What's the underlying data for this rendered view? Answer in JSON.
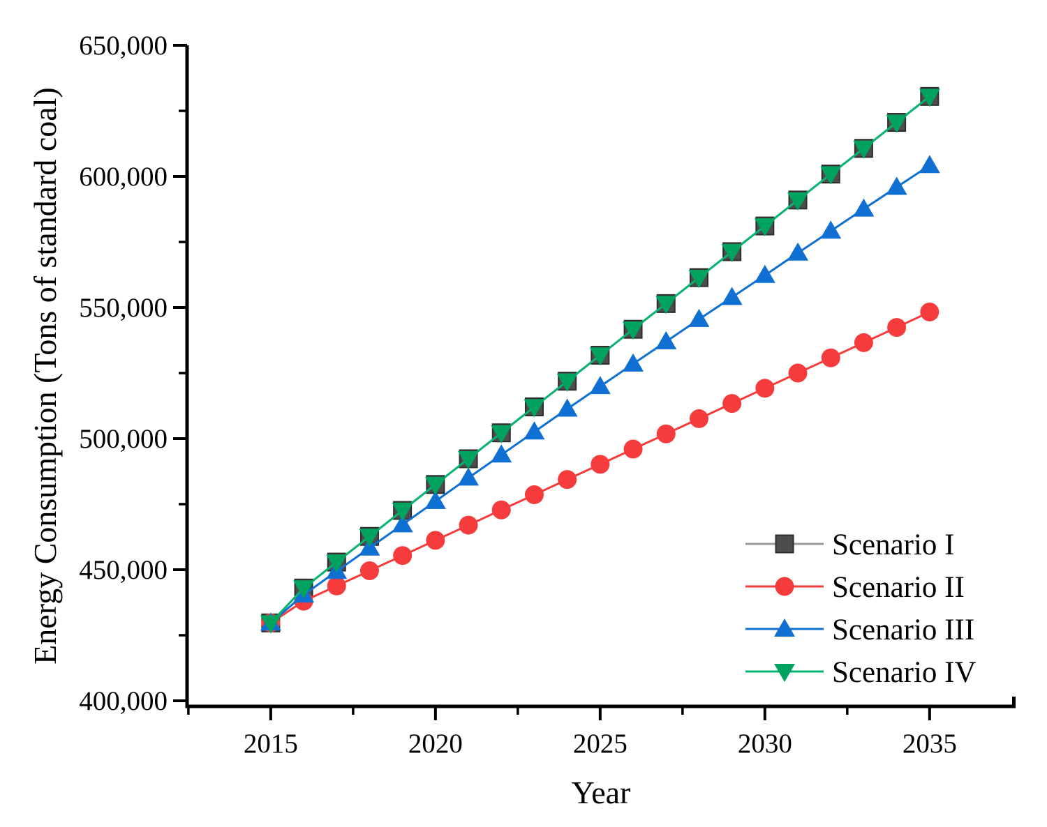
{
  "chart_data": {
    "type": "line",
    "title": "",
    "xlabel": "Year",
    "ylabel": "Energy Consumption (Tons of standard coal)",
    "x": [
      2015,
      2016,
      2017,
      2018,
      2019,
      2020,
      2021,
      2022,
      2023,
      2024,
      2025,
      2026,
      2027,
      2028,
      2029,
      2030,
      2031,
      2032,
      2033,
      2034,
      2035
    ],
    "series": [
      {
        "name": "Scenario I",
        "marker": "square",
        "marker_color": "#4d4d4d",
        "marker_stroke": "#2e2e2e",
        "line_color": "#9a9a9a",
        "values": [
          429700,
          443000,
          452900,
          462700,
          472600,
          482500,
          492300,
          502200,
          512100,
          521900,
          531800,
          541700,
          551500,
          561400,
          571300,
          581100,
          591000,
          600900,
          610700,
          620600,
          630500
        ]
      },
      {
        "name": "Scenario II",
        "marker": "circle",
        "marker_color": "#f53b3b",
        "marker_stroke": "#f53b3b",
        "line_color": "#f53b3b",
        "values": [
          429700,
          438000,
          443800,
          449600,
          455400,
          461200,
          467000,
          472800,
          478600,
          484400,
          490200,
          496000,
          501800,
          507600,
          513400,
          519200,
          525000,
          530800,
          536600,
          542400,
          548300
        ]
      },
      {
        "name": "Scenario III",
        "marker": "triangle-up",
        "marker_color": "#0f6fd2",
        "marker_stroke": "#0f6fd2",
        "line_color": "#0f6fd2",
        "values": [
          429700,
          440400,
          449400,
          458300,
          467200,
          476100,
          485000,
          493800,
          502600,
          511300,
          519900,
          528500,
          537000,
          545500,
          553900,
          562300,
          570800,
          579200,
          587600,
          595900,
          604200
        ]
      },
      {
        "name": "Scenario IV",
        "marker": "triangle-down",
        "marker_color": "#00a25f",
        "marker_stroke": "#00a25f",
        "line_color": "#07b571",
        "values": [
          429700,
          443000,
          452900,
          462700,
          472600,
          482500,
          492300,
          502200,
          512100,
          521900,
          531800,
          541700,
          551500,
          561400,
          571300,
          581100,
          591000,
          600900,
          610700,
          620600,
          630500
        ]
      }
    ],
    "axes": {
      "xlim": [
        2012.46,
        2037.61
      ],
      "ylim": [
        397870,
        650000
      ],
      "x_ticks": [
        2015,
        2020,
        2025,
        2030,
        2035
      ],
      "x_tick_labels": [
        "2015",
        "2020",
        "2025",
        "2030",
        "2035"
      ],
      "x_minor_ticks": [
        2012.5,
        2017.5,
        2022.5,
        2027.5,
        2032.5
      ],
      "y_ticks": [
        400000,
        450000,
        500000,
        550000,
        600000,
        650000
      ],
      "y_tick_labels": [
        "400,000",
        "450,000",
        "500,000",
        "550,000",
        "600,000",
        "650,000"
      ],
      "y_minor_ticks": [
        425000,
        475000,
        525000,
        575000,
        625000
      ],
      "grid": "off"
    },
    "legend": {
      "position": "inside-bottom-right",
      "entries": [
        "Scenario I",
        "Scenario II",
        "Scenario III",
        "Scenario IV"
      ]
    },
    "colors": {
      "axis": "#000000",
      "background": "#ffffff"
    }
  }
}
